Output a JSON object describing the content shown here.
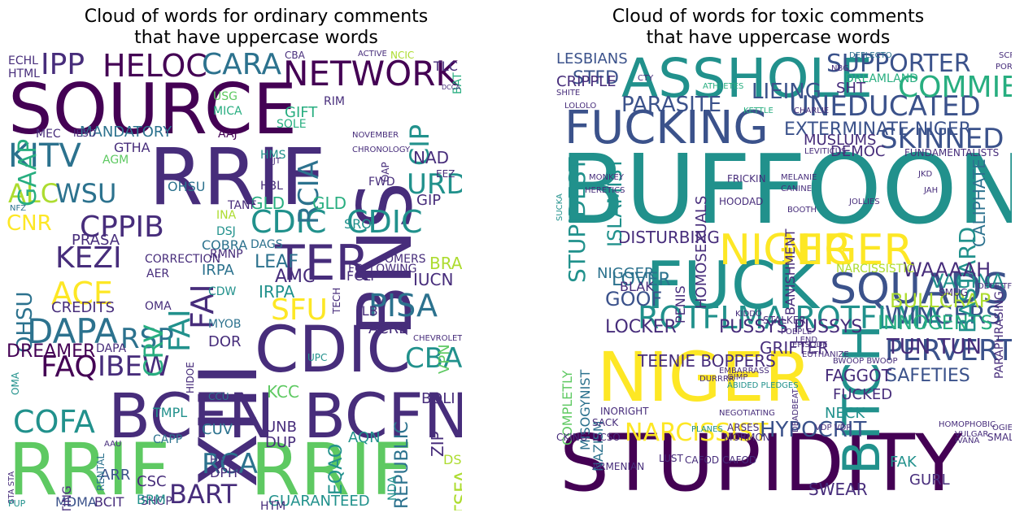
{
  "panels": [
    {
      "title": "Cloud of words for ordinary comments\nthat have uppercase words",
      "words": [
        "SOURCE",
        "RRIF",
        "RRIF",
        "RRIF",
        "BNS",
        "XIII",
        "CDIC",
        "BCFN",
        "BCFN",
        "HELOC",
        "NETWORK",
        "IPP",
        "CARA",
        "KITV",
        "ALC",
        "WSU",
        "CPPIB",
        "KEZI",
        "ACE",
        "DAPA",
        "FAQ",
        "COFA",
        "IBEW",
        "RSP",
        "FAI",
        "TER",
        "PISA",
        "CBA",
        "URD",
        "CIP",
        "CDIC",
        "CDIC",
        "FAI",
        "CRV",
        "SFU",
        "RCIA",
        "MANDATORY",
        "CNR",
        "OHSU",
        "CREDITS",
        "DREAMER",
        "BART",
        "RCA",
        "GUARANTEED",
        "REPUBLIC",
        "TSFA",
        "EQAO",
        "KCC",
        "UNB",
        "DUP",
        "AQN",
        "BOLI",
        "VPN",
        "IUCN",
        "BRAC",
        "NAD",
        "GIP",
        "TLC",
        "BAT",
        "ACRE",
        "ILB",
        "FCLP",
        "AMC",
        "LEAF",
        "DAGS",
        "IRPA",
        "IRPA",
        "RMNP",
        "CDW",
        "GLD",
        "GLD",
        "SRO",
        "MDMA",
        "BCIT",
        "SHOP",
        "HTM",
        "ZIP",
        "DSL",
        "CSC",
        "ARR",
        "BRM",
        "DPH",
        "HFA",
        "CUV",
        "TMPL",
        "CAPP",
        "CCU",
        "UPC",
        "DOR",
        "MYOB",
        "HIDOE",
        "AER",
        "OMA",
        "PRASA",
        "OHSU",
        "COBRA",
        "DSJ",
        "INA",
        "GAAP",
        "ECHL",
        "HTML",
        "MEC",
        "IESO",
        "GTHA",
        "AGM",
        "HMS",
        "OJT",
        "HBL",
        "TANF",
        "AAJ",
        "SOLE",
        "GIFT",
        "RIM",
        "USG",
        "MICA",
        "CBA",
        "NCIC",
        "ACTIVE",
        "OAP",
        "EEZ",
        "FWD",
        "DCCA",
        "CHRONOLOGY",
        "NOVEMBER",
        "RENTAL",
        "STARTING",
        "NFZ",
        "DAPA",
        "OMA",
        "CORRECTION",
        "VASTLY",
        "OMERS",
        "FOLLOWING",
        "TECH",
        "NDA",
        "CHEVROLET HHR",
        "STA STA",
        "PUP",
        "AAU"
      ]
    },
    {
      "title": "Cloud of words for toxic comments\nthat have uppercase words",
      "words": [
        "BUFFOON",
        "STUPIDITY",
        "ASSHOLE",
        "FUCKING",
        "FUCK",
        "NIGER",
        "NIGER",
        "NIGER",
        "BITCH",
        "SQUADS",
        "ROTFLMA ROTFLMA",
        "SUPPORTER",
        "UNEDUCATED",
        "COMMIE",
        "SKINNED",
        "EXTERMINATE NIGER",
        "PARASITE",
        "LIEING",
        "STFD",
        "LESBIANS",
        "CRIPPLE",
        "SHT",
        "DREAMLAND",
        "MUSLUMS",
        "DEMOC",
        "CALIPHATE",
        "PERVERT",
        "NARCISSIST",
        "WINGERS",
        "SAFETIES",
        "HYPOCRIT",
        "TUN TUN",
        "INNOCENTS",
        "BULLCRAP",
        "BASTARD",
        "VAGINA",
        "WAAAAH",
        "PUSSYS PUSSYS",
        "LOCKER",
        "GOOF",
        "LOVER",
        "DISTURBING",
        "ISLAMIST",
        "STUPIDEST",
        "NIGGER",
        "BLAK",
        "HOMOSEXUALS",
        "PENIS",
        "TEENIE BOPPERS",
        "GRIFTER",
        "FAGGOT",
        "FUCKED",
        "NECK",
        "SWEAR",
        "MISOGYNIST",
        "NAZISM",
        "COMPLETLY",
        "GURL",
        "FAK",
        "PARAPHRASING",
        "NARCISSISTIC",
        "BANISHMENT",
        "SMUG",
        "SCROTUM",
        "PORCINE",
        "SHITE",
        "LOLOLO",
        "CTY",
        "DEFLECTO",
        "NBG",
        "ATHLETES",
        "KETTLE",
        "CHARLIE",
        "LEVITICUS",
        "FUNDAMENTALISTS",
        "MONKEY",
        "HERETICS",
        "SUCKA",
        "FRICKIN",
        "MELANIE",
        "CANINE",
        "BOOTH",
        "JKD",
        "JAH",
        "HOODAD",
        "JOLLIES",
        "KIDDO",
        "STALKER",
        "POEPLE",
        "LEND",
        "DECEITFUL",
        "INORIGHT",
        "SACK",
        "DCSO",
        "CKING",
        "ARMENIAN",
        "CAFOD CAFOD",
        "LUST",
        "ARSES",
        "MORMON",
        "PLANES",
        "DEADBEAT",
        "VDP VDP",
        "VULGAR",
        "IVANA",
        "SMALLEST",
        "HOMOPHOBIC",
        "OGIER",
        "EPISODE",
        "EUTHANIZE",
        "BWOOP BWOOP",
        "EMBARRASS",
        "DURRRR",
        "GIMP",
        "NEGOTIATING",
        "ABIDED PLEDGES"
      ]
    }
  ],
  "colors": {
    "dark_purple": "#440154",
    "indigo": "#472d7b",
    "blue": "#3b528b",
    "steel": "#2c728e",
    "teal": "#21918c",
    "sea": "#28ae80",
    "green": "#5ec962",
    "lime": "#addc30",
    "yellow": "#fde725"
  }
}
